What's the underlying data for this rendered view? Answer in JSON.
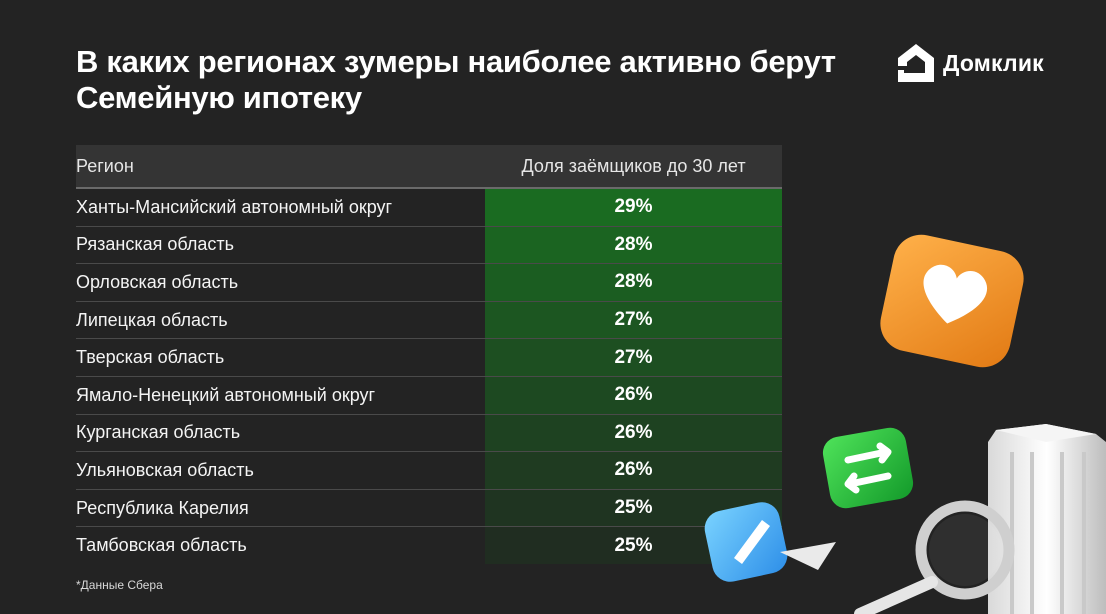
{
  "header": {
    "title": "В каких регионах зумеры наиболее активно берут Семейную ипотеку",
    "logo_text": "Домклик"
  },
  "chart_data": {
    "type": "table",
    "columns": [
      "Регион",
      "Доля заёмщиков до 30 лет"
    ],
    "rows": [
      {
        "region": "Ханты-Мансийский автономный округ",
        "share": 29,
        "share_label": "29%"
      },
      {
        "region": "Рязанская область",
        "share": 28,
        "share_label": "28%"
      },
      {
        "region": "Орловская область",
        "share": 28,
        "share_label": "28%"
      },
      {
        "region": "Липецкая область",
        "share": 27,
        "share_label": "27%"
      },
      {
        "region": "Тверская область",
        "share": 27,
        "share_label": "27%"
      },
      {
        "region": "Ямало-Ненецкий автономный округ",
        "share": 26,
        "share_label": "26%"
      },
      {
        "region": "Курганская область",
        "share": 26,
        "share_label": "26%"
      },
      {
        "region": "Ульяновская область",
        "share": 26,
        "share_label": "26%"
      },
      {
        "region": "Республика Карелия",
        "share": 25,
        "share_label": "25%"
      },
      {
        "region": "Тамбовская область",
        "share": 25,
        "share_label": "25%"
      }
    ],
    "highlight_color_top": "#1a6b21",
    "highlight_color_bottom": "#202d21"
  },
  "footnote": "*Данные Сбера",
  "icons": [
    "domclick-logo-icon",
    "heart-icon",
    "swap-arrows-icon",
    "pencil-icon",
    "magnifier-icon",
    "building-icon"
  ]
}
